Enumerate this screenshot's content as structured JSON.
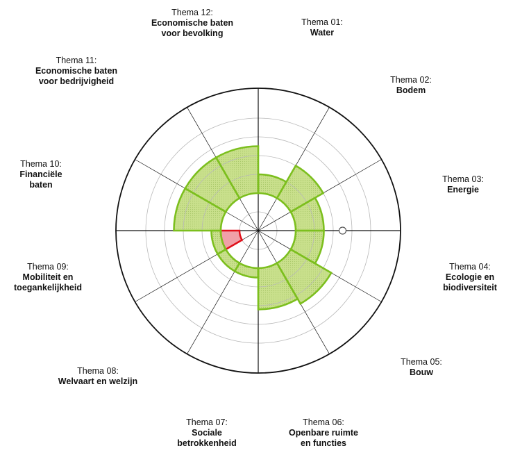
{
  "chart_data": {
    "type": "polar-area",
    "rings": 6,
    "axes": [
      {
        "id": "01",
        "theme": "Thema 01:",
        "name": [
          "Water"
        ]
      },
      {
        "id": "02",
        "theme": "Thema 02:",
        "name": [
          "Bodem"
        ]
      },
      {
        "id": "03",
        "theme": "Thema 03:",
        "name": [
          "Energie"
        ]
      },
      {
        "id": "04",
        "theme": "Thema 04:",
        "name": [
          "Ecologie en",
          "biodiversiteit"
        ]
      },
      {
        "id": "05",
        "theme": "Thema 05:",
        "name": [
          "Bouw"
        ]
      },
      {
        "id": "06",
        "theme": "Thema 06:",
        "name": [
          "Openbare ruimte",
          "en functies"
        ]
      },
      {
        "id": "07",
        "theme": "Thema 07:",
        "name": [
          "Sociale",
          "betrokkenheid"
        ]
      },
      {
        "id": "08",
        "theme": "Thema 08:",
        "name": [
          "Welvaart en welzijn"
        ]
      },
      {
        "id": "09",
        "theme": "Thema 09:",
        "name": [
          "Mobiliteit en",
          "toegankelijkheid"
        ]
      },
      {
        "id": "10",
        "theme": "Thema 10:",
        "name": [
          "Financiële",
          "baten"
        ]
      },
      {
        "id": "11",
        "theme": "Thema 11:",
        "name": [
          "Economische baten",
          "voor bedrijvigheid"
        ]
      },
      {
        "id": "12",
        "theme": "Thema 12:",
        "name": [
          "Economische baten",
          "voor bevolking"
        ]
      }
    ],
    "baseline": 2,
    "green_segments": [
      {
        "sector": 1,
        "from": 2,
        "to": 3
      },
      {
        "sector": 2,
        "from": 2,
        "to": 4
      },
      {
        "sector": 3,
        "from": 2,
        "to": 3.5
      },
      {
        "sector": 4,
        "from": 2,
        "to": 3.5
      },
      {
        "sector": 5,
        "from": 2,
        "to": 4.5
      },
      {
        "sector": 6,
        "from": 2,
        "to": 4.2
      },
      {
        "sector": 7,
        "from": 2,
        "to": 2.5
      },
      {
        "sector": 8,
        "from": 2,
        "to": 2.5
      },
      {
        "sector": 9,
        "from": 2,
        "to": 2.5
      },
      {
        "sector": 10,
        "from": 2,
        "to": 4.5
      },
      {
        "sector": 11,
        "from": 2,
        "to": 4.5
      },
      {
        "sector": 12,
        "from": 2,
        "to": 4.5
      }
    ],
    "red_segments": [
      {
        "sector": 9,
        "from": 2.0,
        "to": 1.0
      }
    ],
    "colors": {
      "green_fill": "#c9e08c",
      "green_stroke": "#7cbf1e",
      "red_fill": "#f0a0a8",
      "red_stroke": "#e0101a",
      "line": "#111111",
      "ring": "#b8b8b8"
    }
  }
}
